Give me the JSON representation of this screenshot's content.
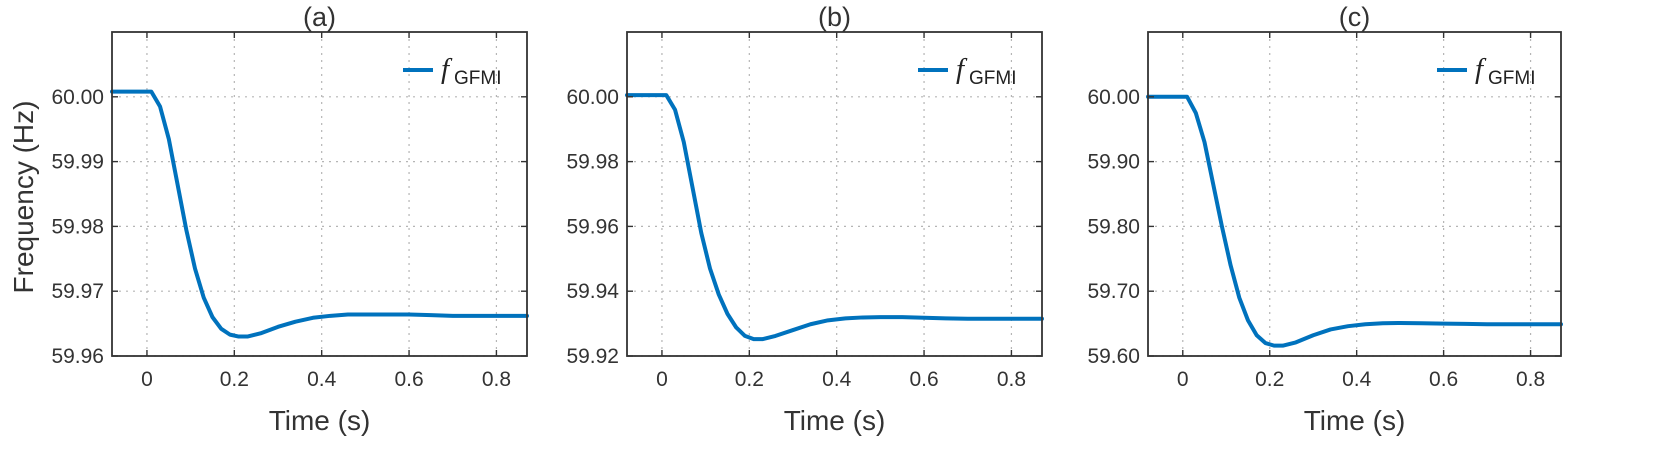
{
  "shared_ylabel": "Frequency (Hz)",
  "chart_data": [
    {
      "type": "line",
      "title": "(a)",
      "xlabel": "Time (s)",
      "ylabel": "Frequency (Hz)",
      "xlim": [
        -0.08,
        0.87
      ],
      "ylim": [
        59.96,
        60.01
      ],
      "xticks": [
        0,
        0.2,
        0.4,
        0.6,
        0.8
      ],
      "xtick_labels": [
        "0",
        "0.2",
        "0.4",
        "0.6",
        "0.8"
      ],
      "yticks": [
        59.96,
        59.97,
        59.98,
        59.99,
        60.0
      ],
      "ytick_labels": [
        "59.96",
        "59.97",
        "59.98",
        "59.99",
        "60.00"
      ],
      "grid": true,
      "legend": {
        "position": "top-right",
        "symbol": "f",
        "subscript": "GFMI"
      },
      "series": [
        {
          "name": "f_GFMI",
          "color": "#0072bd",
          "points": [
            [
              -0.08,
              60.0008
            ],
            [
              0.01,
              60.0008
            ],
            [
              0.03,
              59.9985
            ],
            [
              0.05,
              59.9935
            ],
            [
              0.07,
              59.9865
            ],
            [
              0.09,
              59.9795
            ],
            [
              0.11,
              59.9735
            ],
            [
              0.13,
              59.969
            ],
            [
              0.15,
              59.966
            ],
            [
              0.17,
              59.9642
            ],
            [
              0.19,
              59.9633
            ],
            [
              0.21,
              59.963
            ],
            [
              0.23,
              59.963
            ],
            [
              0.26,
              59.9635
            ],
            [
              0.3,
              59.9645
            ],
            [
              0.34,
              59.9653
            ],
            [
              0.38,
              59.9659
            ],
            [
              0.42,
              59.9662
            ],
            [
              0.46,
              59.9664
            ],
            [
              0.5,
              59.9664
            ],
            [
              0.55,
              59.9664
            ],
            [
              0.6,
              59.9664
            ],
            [
              0.65,
              59.9663
            ],
            [
              0.7,
              59.9662
            ],
            [
              0.75,
              59.9662
            ],
            [
              0.8,
              59.9662
            ],
            [
              0.87,
              59.9662
            ]
          ]
        }
      ]
    },
    {
      "type": "line",
      "title": "(b)",
      "xlabel": "Time (s)",
      "ylabel": "",
      "xlim": [
        -0.08,
        0.87
      ],
      "ylim": [
        59.92,
        60.02
      ],
      "xticks": [
        0,
        0.2,
        0.4,
        0.6,
        0.8
      ],
      "xtick_labels": [
        "0",
        "0.2",
        "0.4",
        "0.6",
        "0.8"
      ],
      "yticks": [
        59.92,
        59.94,
        59.96,
        59.98,
        60.0
      ],
      "ytick_labels": [
        "59.92",
        "59.94",
        "59.96",
        "59.98",
        "60.00"
      ],
      "grid": true,
      "legend": {
        "position": "top-right",
        "symbol": "f",
        "subscript": "GFMI"
      },
      "series": [
        {
          "name": "f_GFMI",
          "color": "#0072bd",
          "points": [
            [
              -0.08,
              60.0005
            ],
            [
              0.01,
              60.0005
            ],
            [
              0.03,
              59.996
            ],
            [
              0.05,
              59.986
            ],
            [
              0.07,
              59.972
            ],
            [
              0.09,
              59.958
            ],
            [
              0.11,
              59.947
            ],
            [
              0.13,
              59.939
            ],
            [
              0.15,
              59.933
            ],
            [
              0.17,
              59.9288
            ],
            [
              0.19,
              59.9262
            ],
            [
              0.21,
              59.9252
            ],
            [
              0.23,
              59.9252
            ],
            [
              0.26,
              59.9262
            ],
            [
              0.3,
              59.928
            ],
            [
              0.34,
              59.9298
            ],
            [
              0.38,
              59.931
            ],
            [
              0.42,
              59.9316
            ],
            [
              0.46,
              59.9319
            ],
            [
              0.5,
              59.932
            ],
            [
              0.55,
              59.932
            ],
            [
              0.6,
              59.9318
            ],
            [
              0.65,
              59.9316
            ],
            [
              0.7,
              59.9315
            ],
            [
              0.75,
              59.9315
            ],
            [
              0.8,
              59.9315
            ],
            [
              0.87,
              59.9315
            ]
          ]
        }
      ]
    },
    {
      "type": "line",
      "title": "(c)",
      "xlabel": "Time (s)",
      "ylabel": "",
      "xlim": [
        -0.08,
        0.87
      ],
      "ylim": [
        59.6,
        60.1
      ],
      "xticks": [
        0,
        0.2,
        0.4,
        0.6,
        0.8
      ],
      "xtick_labels": [
        "0",
        "0.2",
        "0.4",
        "0.6",
        "0.8"
      ],
      "yticks": [
        59.6,
        59.7,
        59.8,
        59.9,
        60.0
      ],
      "ytick_labels": [
        "59.60",
        "59.70",
        "59.80",
        "59.90",
        "60.00"
      ],
      "grid": true,
      "legend": {
        "position": "top-right",
        "symbol": "f",
        "subscript": "GFMI"
      },
      "series": [
        {
          "name": "f_GFMI",
          "color": "#0072bd",
          "points": [
            [
              -0.08,
              60.0
            ],
            [
              0.01,
              60.0
            ],
            [
              0.03,
              59.975
            ],
            [
              0.05,
              59.93
            ],
            [
              0.07,
              59.865
            ],
            [
              0.09,
              59.8
            ],
            [
              0.11,
              59.74
            ],
            [
              0.13,
              59.69
            ],
            [
              0.15,
              59.655
            ],
            [
              0.17,
              59.632
            ],
            [
              0.19,
              59.62
            ],
            [
              0.21,
              59.616
            ],
            [
              0.23,
              59.616
            ],
            [
              0.26,
              59.621
            ],
            [
              0.3,
              59.632
            ],
            [
              0.34,
              59.641
            ],
            [
              0.38,
              59.646
            ],
            [
              0.42,
              59.649
            ],
            [
              0.46,
              59.6505
            ],
            [
              0.5,
              59.651
            ],
            [
              0.55,
              59.6505
            ],
            [
              0.6,
              59.65
            ],
            [
              0.65,
              59.6495
            ],
            [
              0.7,
              59.649
            ],
            [
              0.75,
              59.649
            ],
            [
              0.8,
              59.649
            ],
            [
              0.87,
              59.649
            ]
          ]
        }
      ]
    }
  ]
}
